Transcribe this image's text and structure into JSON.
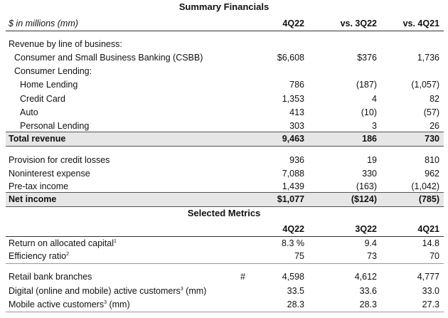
{
  "summary_title": "Summary Financials",
  "header": {
    "label": "$ in millions (mm)",
    "c1": "4Q22",
    "c2": "vs. 3Q22",
    "c3": "vs. 4Q21"
  },
  "revenue_heading": "Revenue by line of business:",
  "rows": [
    {
      "label": "Consumer and Small Business Banking (CSBB)",
      "c1": "$6,608",
      "c2": "$376",
      "c3": "1,736"
    },
    {
      "label": "Consumer Lending:",
      "c1": "",
      "c2": "",
      "c3": ""
    },
    {
      "label": "Home Lending",
      "c1": "786",
      "c2": "(187)",
      "c3": "(1,057)"
    },
    {
      "label": "Credit Card",
      "c1": "1,353",
      "c2": "4",
      "c3": "82"
    },
    {
      "label": "Auto",
      "c1": "413",
      "c2": "(10)",
      "c3": "(57)"
    },
    {
      "label": "Personal Lending",
      "c1": "303",
      "c2": "3",
      "c3": "26"
    }
  ],
  "total_revenue": {
    "label": "Total revenue",
    "c1": "9,463",
    "c2": "186",
    "c3": "730"
  },
  "rows2": [
    {
      "label": "Provision for credit losses",
      "c1": "936",
      "c2": "19",
      "c3": "810"
    },
    {
      "label": "Noninterest expense",
      "c1": "7,088",
      "c2": "330",
      "c3": "962"
    },
    {
      "label": "Pre-tax income",
      "c1": "1,439",
      "c2": "(163)",
      "c3": "(1,042)"
    }
  ],
  "net_income": {
    "label": "Net income",
    "c1": "$1,077",
    "c2": "($124)",
    "c3": "(785)"
  },
  "metrics_title": "Selected Metrics",
  "metrics_header": {
    "c1": "4Q22",
    "c2": "3Q22",
    "c3": "4Q21"
  },
  "metrics": [
    {
      "label": "Return on allocated capital",
      "sup": "1",
      "c1": "8.3 %",
      "c2": "9.4",
      "c3": "14.8"
    },
    {
      "label": "Efficiency ratio",
      "sup": "2",
      "c1": "75",
      "c2": "73",
      "c3": "70"
    }
  ],
  "metrics2": [
    {
      "label": "Retail bank branches",
      "hash": "#",
      "c1": "4,598",
      "c2": "4,612",
      "c3": "4,777"
    },
    {
      "label": "Digital (online and mobile) active customers",
      "sup": "3",
      "suffix": " (mm)",
      "c1": "33.5",
      "c2": "33.6",
      "c3": "33.0"
    },
    {
      "label": "Mobile active customers",
      "sup": "3",
      "suffix": " (mm)",
      "c1": "28.3",
      "c2": "28.3",
      "c3": "27.3"
    }
  ]
}
